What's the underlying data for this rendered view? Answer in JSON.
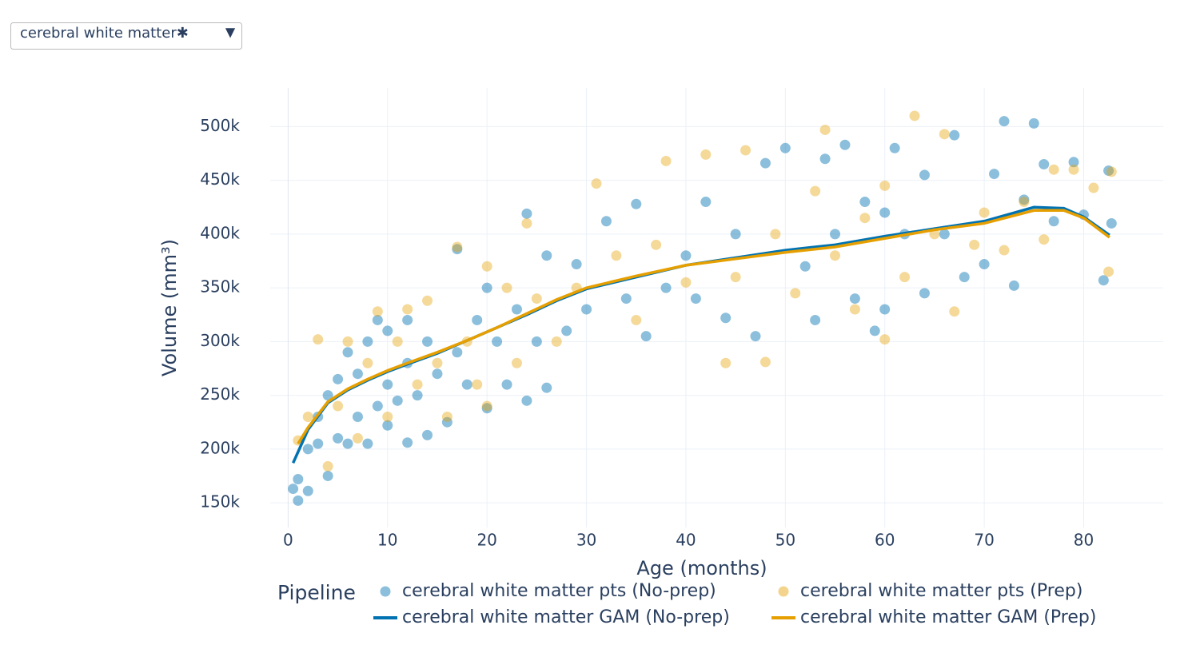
{
  "dropdown": {
    "selected": "cerebral white matter✱",
    "arrow": "▼"
  },
  "chart_data": {
    "type": "scatter",
    "x_label": "Age (months)",
    "y_label": "Volume (mm³)",
    "legend_title": "Pipeline",
    "xlim": [
      -1.8,
      88
    ],
    "ylim": [
      127000,
      536000
    ],
    "xticks": [
      0,
      10,
      20,
      30,
      40,
      50,
      60,
      70,
      80
    ],
    "yticks": [
      {
        "value": 150000,
        "label": "150k"
      },
      {
        "value": 200000,
        "label": "200k"
      },
      {
        "value": 250000,
        "label": "250k"
      },
      {
        "value": 300000,
        "label": "300k"
      },
      {
        "value": 350000,
        "label": "350k"
      },
      {
        "value": 400000,
        "label": "400k"
      },
      {
        "value": 450000,
        "label": "450k"
      },
      {
        "value": 500000,
        "label": "500k"
      }
    ],
    "grid": true,
    "series": [
      {
        "name": "cerebral white matter pts (No-prep)",
        "mode": "markers",
        "color": "#0072b2",
        "x": [
          0.5,
          1,
          1,
          2,
          2,
          3,
          3,
          4,
          4,
          5,
          5,
          6,
          6,
          7,
          7,
          8,
          8,
          9,
          9,
          10,
          10,
          10,
          11,
          12,
          12,
          12,
          13,
          14,
          14,
          15,
          16,
          17,
          17,
          18,
          19,
          20,
          20,
          21,
          22,
          23,
          24,
          24,
          25,
          26,
          26,
          28,
          29,
          30,
          32,
          34,
          35,
          36,
          38,
          40,
          41,
          42,
          44,
          45,
          47,
          48,
          50,
          52,
          53,
          54,
          55,
          56,
          57,
          58,
          59,
          60,
          60,
          61,
          62,
          64,
          64,
          66,
          67,
          68,
          70,
          71,
          72,
          73,
          74,
          75,
          76,
          77,
          79,
          80,
          82,
          82.5,
          82.8
        ],
        "values": [
          163000,
          152000,
          172000,
          161000,
          200000,
          205000,
          230000,
          175000,
          250000,
          210000,
          265000,
          205000,
          290000,
          230000,
          270000,
          205000,
          300000,
          240000,
          320000,
          222000,
          260000,
          310000,
          245000,
          206000,
          280000,
          320000,
          250000,
          213000,
          300000,
          270000,
          225000,
          290000,
          386000,
          260000,
          320000,
          238000,
          350000,
          300000,
          260000,
          330000,
          245000,
          419000,
          300000,
          257000,
          380000,
          310000,
          372000,
          330000,
          412000,
          340000,
          428000,
          305000,
          350000,
          380000,
          340000,
          430000,
          322000,
          400000,
          305000,
          466000,
          480000,
          370000,
          320000,
          470000,
          400000,
          483000,
          340000,
          430000,
          310000,
          330000,
          420000,
          480000,
          400000,
          345000,
          455000,
          400000,
          492000,
          360000,
          372000,
          456000,
          505000,
          352000,
          432000,
          503000,
          465000,
          412000,
          467000,
          418000,
          357000,
          459000,
          410000
        ]
      },
      {
        "name": "cerebral white matter pts (Prep)",
        "mode": "markers",
        "color": "#e69f00",
        "x": [
          1,
          2,
          3,
          4,
          5,
          6,
          7,
          8,
          9,
          10,
          11,
          12,
          13,
          14,
          15,
          16,
          17,
          18,
          19,
          20,
          20,
          22,
          23,
          24,
          25,
          27,
          29,
          31,
          33,
          35,
          37,
          38,
          40,
          42,
          44,
          45,
          46,
          48,
          49,
          51,
          53,
          54,
          55,
          57,
          58,
          60,
          60,
          62,
          63,
          65,
          66,
          67,
          69,
          70,
          72,
          74,
          76,
          77,
          79,
          81,
          82.5,
          82.8
        ],
        "values": [
          208000,
          230000,
          302000,
          184000,
          240000,
          300000,
          210000,
          280000,
          328000,
          230000,
          300000,
          330000,
          260000,
          338000,
          280000,
          230000,
          388000,
          300000,
          260000,
          370000,
          240000,
          350000,
          280000,
          410000,
          340000,
          300000,
          350000,
          447000,
          380000,
          320000,
          390000,
          468000,
          355000,
          474000,
          280000,
          360000,
          478000,
          281000,
          400000,
          345000,
          440000,
          497000,
          380000,
          330000,
          415000,
          302000,
          445000,
          360000,
          510000,
          400000,
          493000,
          328000,
          390000,
          420000,
          385000,
          430000,
          395000,
          460000,
          460000,
          443000,
          365000,
          458000
        ]
      },
      {
        "name": "cerebral white matter GAM (No-prep)",
        "mode": "lines",
        "color": "#0072b2",
        "x": [
          0.5,
          2,
          4,
          6,
          8,
          10,
          12,
          15,
          18,
          21,
          24,
          27,
          30,
          35,
          40,
          45,
          50,
          55,
          60,
          65,
          70,
          75,
          78,
          80,
          82.6
        ],
        "values": [
          187000,
          218000,
          243000,
          255000,
          264000,
          272000,
          279000,
          289000,
          301000,
          313000,
          325000,
          338000,
          349000,
          360000,
          371000,
          378000,
          385000,
          390000,
          398000,
          405000,
          412000,
          425000,
          424000,
          416000,
          399000
        ]
      },
      {
        "name": "cerebral white matter GAM (Prep)",
        "mode": "lines",
        "color": "#e69f00",
        "x": [
          1,
          2,
          4,
          6,
          8,
          10,
          12,
          15,
          18,
          21,
          24,
          27,
          30,
          35,
          40,
          45,
          50,
          55,
          60,
          65,
          70,
          75,
          78,
          80,
          82.6
        ],
        "values": [
          205000,
          220000,
          244000,
          256000,
          265000,
          273000,
          280000,
          290000,
          301000,
          313000,
          326000,
          339000,
          350000,
          361000,
          371000,
          377000,
          383000,
          388000,
          396000,
          404000,
          410000,
          422000,
          422000,
          415000,
          397000
        ]
      }
    ]
  }
}
